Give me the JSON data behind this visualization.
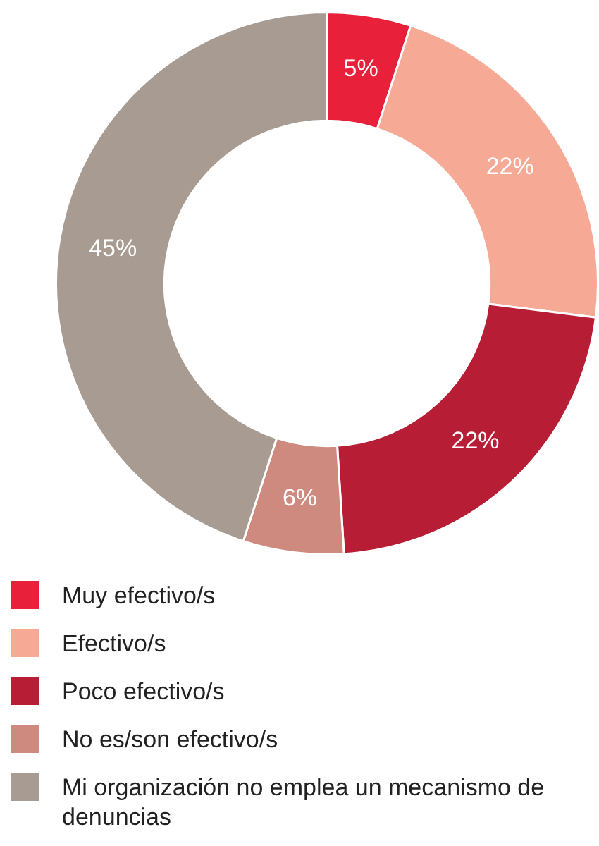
{
  "chart_data": {
    "type": "donut",
    "categories": [
      "Muy efectivo/s",
      "Efectivo/s",
      "Poco efectivo/s",
      "No es/son efectivo/s",
      "Mi organización no emplea un mecanismo de denuncias"
    ],
    "values": [
      5,
      22,
      22,
      6,
      45
    ],
    "colors": [
      "#e8203a",
      "#f6a995",
      "#b71e36",
      "#cf8a80",
      "#a89c92"
    ],
    "value_labels": [
      "5%",
      "22%",
      "22%",
      "6%",
      "45%"
    ],
    "legend": "bottom"
  }
}
